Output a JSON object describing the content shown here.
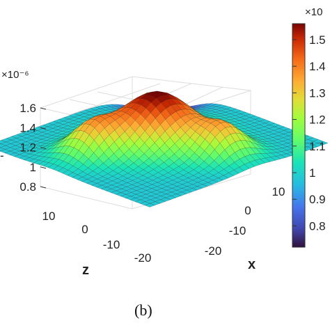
{
  "caption": "(b)",
  "chart_data": {
    "type": "surface",
    "title": "",
    "z_axis": {
      "ticks": [
        0.8,
        1,
        1.2,
        1.4,
        1.6
      ],
      "tick_labels": [
        "0.8",
        "1",
        "1.2",
        "1.4",
        "1.6"
      ],
      "exponent_label": "×10⁻⁶",
      "range": [
        0.72,
        1.6
      ]
    },
    "x_axis": {
      "label": "x",
      "ticks": [
        -20,
        -10,
        0,
        10
      ],
      "tick_labels": [
        "-20",
        "-10",
        "0",
        "10"
      ]
    },
    "z_depth_axis": {
      "label": "z",
      "ticks": [
        10,
        0,
        -10,
        -20
      ],
      "tick_labels": [
        "10",
        "0",
        "-10",
        "-20"
      ]
    },
    "colorbar": {
      "colormap": "turbo",
      "range": [
        0.72,
        1.56
      ],
      "ticks": [
        0.8,
        0.9,
        1,
        1.1,
        1.2,
        1.3,
        1.4,
        1.5
      ],
      "tick_labels": [
        "0.8",
        "0.9",
        "1",
        "1.1",
        "1.2",
        "1.3",
        "1.4",
        "1.5"
      ],
      "exponent_label": "×10"
    },
    "surface_features": {
      "center_peak": 1.57,
      "side_lobe_peaks": 1.3,
      "corner_min": 0.72,
      "edge_level": 0.98
    },
    "grid": true
  }
}
